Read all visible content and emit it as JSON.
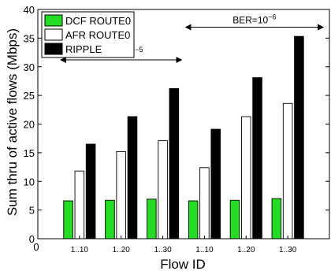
{
  "chart_data": {
    "type": "bar",
    "xlabel": "Flow ID",
    "ylabel": "Sum thru of active flows (Mbps)",
    "ylim": [
      0,
      40
    ],
    "xlim": [
      0,
      7
    ],
    "y_ticks": [
      0,
      5,
      10,
      15,
      20,
      25,
      30,
      35,
      40
    ],
    "x_zero_tick": "0",
    "categories": [
      "1..10",
      "1..20",
      "1..30",
      "1..10",
      "1..20",
      "1..30"
    ],
    "series": [
      {
        "name": "DCF ROUTE0",
        "color": "#22dd22",
        "values": [
          6.6,
          6.7,
          6.9,
          6.6,
          6.7,
          7.0
        ]
      },
      {
        "name": "AFR ROUTE0",
        "color": "#ffffff",
        "values": [
          11.8,
          15.2,
          17.1,
          12.4,
          21.3,
          23.6
        ]
      },
      {
        "name": "RIPPLE",
        "color": "#000000",
        "values": [
          16.5,
          21.3,
          26.2,
          19.1,
          28.1,
          35.3
        ]
      }
    ],
    "grid": false,
    "legend_position": "top-left",
    "annotations": [
      {
        "text": "BER=10",
        "exponent": "−5",
        "x_from": 0.55,
        "x_to": 3.45,
        "y": 31.2
      },
      {
        "text": "BER=10",
        "exponent": "−6",
        "x_from": 3.55,
        "x_to": 6.85,
        "y": 36.9
      }
    ]
  }
}
